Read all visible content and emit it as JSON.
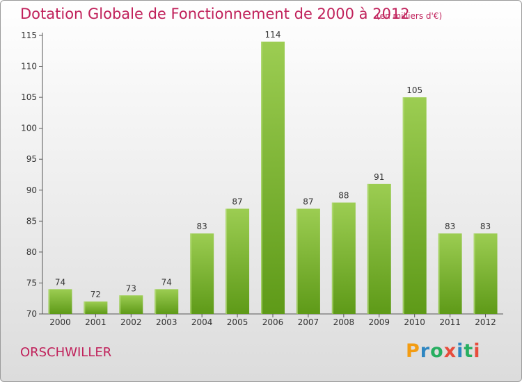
{
  "title": "Dotation Globale de Fonctionnement de 2000 à 2012",
  "unit": "(en milliers d'€)",
  "place": "ORSCHWILLER",
  "logo": {
    "letters": [
      "P",
      "r",
      "o",
      "x",
      "i",
      "t",
      "i"
    ],
    "colors": [
      "#f39c12",
      "#2e86c1",
      "#27ae60",
      "#e74c3c",
      "#2e86c1",
      "#27ae60",
      "#e74c3c"
    ]
  },
  "chart_data": {
    "type": "bar",
    "categories": [
      "2000",
      "2001",
      "2002",
      "2003",
      "2004",
      "2005",
      "2006",
      "2007",
      "2008",
      "2009",
      "2010",
      "2011",
      "2012"
    ],
    "values": [
      74,
      72,
      73,
      74,
      83,
      87,
      114,
      87,
      88,
      91,
      105,
      83,
      83
    ],
    "ylim": [
      70,
      115
    ],
    "yticks": [
      70,
      75,
      80,
      85,
      90,
      95,
      100,
      105,
      110,
      115
    ],
    "grid": false,
    "bar_color": "#7dc242"
  }
}
